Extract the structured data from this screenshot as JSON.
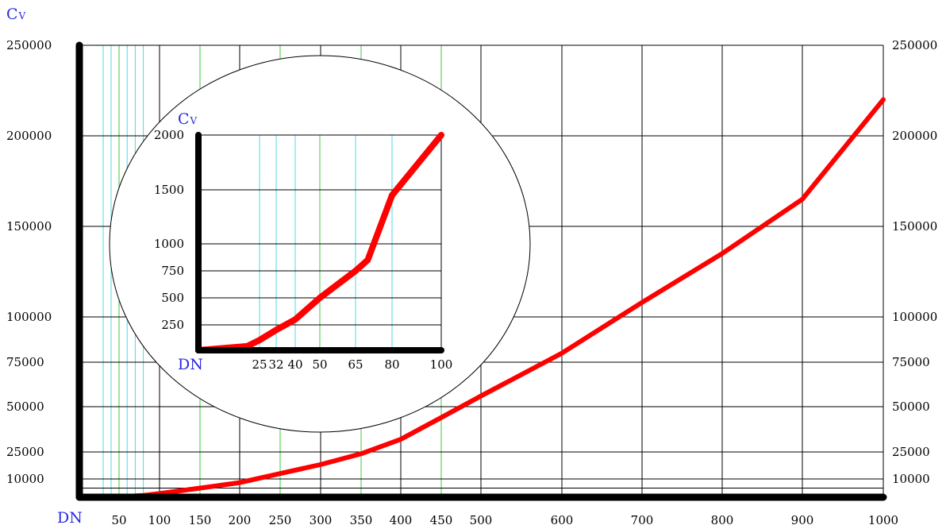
{
  "colors": {
    "curve": "#ff0000",
    "axis": "#000000",
    "grid": "#000000",
    "grid_cyan": "#4fd8e6",
    "grid_green": "#3cc83c",
    "label_blue": "#2a2ae0"
  },
  "chart_data": [
    {
      "type": "line",
      "xlabel": "DN",
      "ylabel": {
        "main": "C",
        "sub": "V"
      },
      "x_ticks": [
        50,
        100,
        150,
        200,
        250,
        300,
        350,
        400,
        450,
        500,
        600,
        700,
        800,
        900,
        1000
      ],
      "y_ticks_left": [
        10000,
        25000,
        50000,
        75000,
        100000,
        150000,
        200000,
        250000
      ],
      "y_ticks_right": [
        10000,
        25000,
        50000,
        75000,
        100000,
        150000,
        200000,
        250000
      ],
      "ylim": [
        0,
        250000
      ],
      "grid": true,
      "series": [
        {
          "x": [
            40,
            80,
            100,
            150,
            200,
            250,
            300,
            350,
            400,
            450,
            500,
            600,
            700,
            800,
            900,
            1000
          ],
          "values": [
            0,
            1000,
            2000,
            5000,
            8000,
            13000,
            18000,
            24000,
            32000,
            44000,
            56000,
            80000,
            108000,
            135000,
            165000,
            220000
          ]
        }
      ]
    },
    {
      "type": "line",
      "inset": true,
      "xlabel": "DN",
      "ylabel": {
        "main": "C",
        "sub": "V"
      },
      "x_ticks": [
        25,
        32,
        40,
        50,
        65,
        80,
        100
      ],
      "y_ticks": [
        250,
        500,
        750,
        1000,
        1500,
        2000
      ],
      "ylim": [
        0,
        2000
      ],
      "grid": true,
      "series": [
        {
          "x": [
            0,
            20,
            25,
            32,
            40,
            50,
            65,
            70,
            80,
            100
          ],
          "values": [
            0,
            40,
            100,
            200,
            300,
            500,
            750,
            850,
            1450,
            2000
          ]
        }
      ]
    }
  ]
}
